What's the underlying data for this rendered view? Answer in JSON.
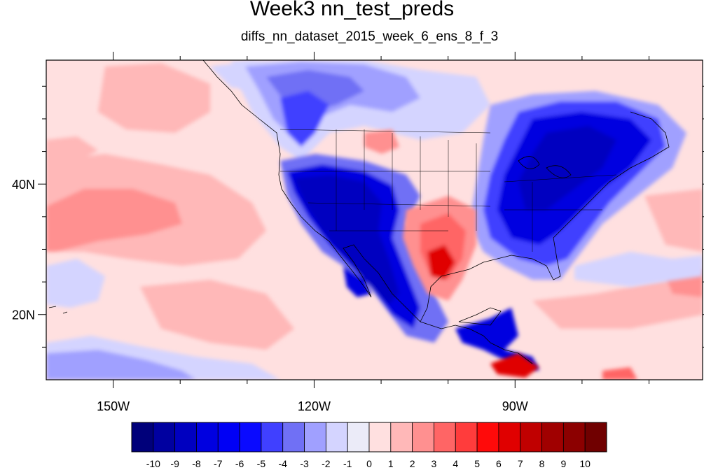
{
  "title": "Week3 nn_test_preds",
  "subtitle": "diffs_nn_dataset_2015_week_6_ens_8_f_3",
  "map": {
    "lon_range": [
      -160,
      -62
    ],
    "lat_range": [
      10,
      59
    ],
    "x_ticks": [
      {
        "lon": -150,
        "label": "150W"
      },
      {
        "lon": -120,
        "label": "120W"
      },
      {
        "lon": -90,
        "label": "90W"
      }
    ],
    "y_ticks": [
      {
        "lat": 40,
        "label": "40N"
      },
      {
        "lat": 20,
        "label": "20N"
      }
    ]
  },
  "colorbar": {
    "labels": [
      "-10",
      "-9",
      "-8",
      "-7",
      "-6",
      "-5",
      "-4",
      "-3",
      "-2",
      "-1",
      "0",
      "1",
      "2",
      "3",
      "4",
      "5",
      "6",
      "7",
      "8",
      "9",
      "10"
    ],
    "colors": [
      "#00007a",
      "#0000a0",
      "#0000c0",
      "#0000e0",
      "#0000f5",
      "#0a0aff",
      "#4040ff",
      "#7070f5",
      "#a0a0ff",
      "#d4d4ff",
      "#ebebf8",
      "#ffe0e0",
      "#ffb8b8",
      "#ff9090",
      "#ff6565",
      "#ff3c3c",
      "#ff0a0a",
      "#e00000",
      "#c00000",
      "#a00000",
      "#8c0000",
      "#700000"
    ]
  }
}
